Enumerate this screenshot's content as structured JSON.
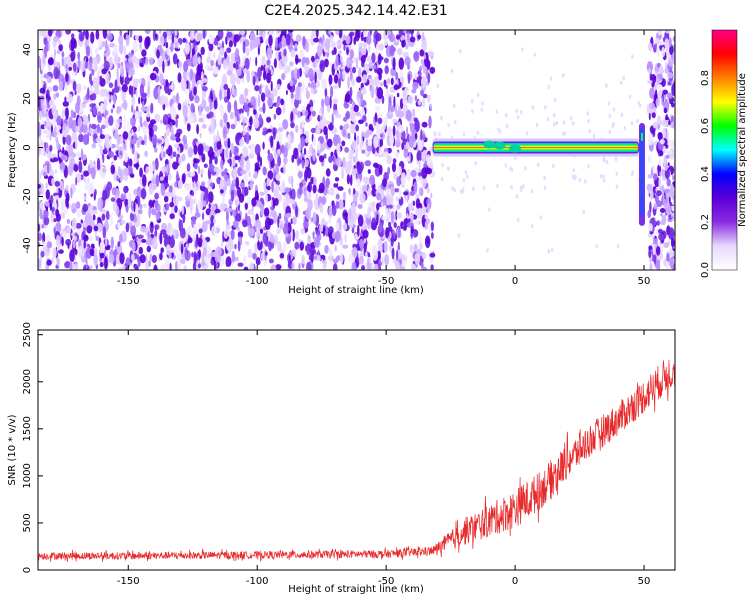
{
  "title": "C2E4.2025.342.14.42.E31",
  "chart_data": [
    {
      "type": "heatmap",
      "xlabel": "Height of straight line (km)",
      "ylabel": "Frequency (Hz)",
      "xlim": [
        -185,
        62
      ],
      "ylim": [
        -50,
        48
      ],
      "xticks": [
        -150,
        -100,
        -50,
        0,
        50
      ],
      "yticks": [
        -40,
        -20,
        0,
        20,
        40
      ],
      "noise_region_x": [
        -185,
        -32
      ],
      "noise_region_right_x": [
        50,
        62
      ],
      "signal_band": {
        "x": [
          -32,
          48
        ],
        "frequency": 0
      },
      "colorbar": {
        "label": "Normalized spectral amplitude",
        "range": [
          0,
          1
        ],
        "ticks": [
          0.0,
          0.2,
          0.4,
          0.6,
          0.8
        ],
        "colormap": [
          "#ffffff",
          "#e8d8ff",
          "#8a2be2",
          "#5a00d6",
          "#0000ff",
          "#00ffff",
          "#00ff00",
          "#ffff00",
          "#ff8000",
          "#ff0000",
          "#ff0088"
        ]
      }
    },
    {
      "type": "line",
      "xlabel": "Height of straight line (km)",
      "ylabel": "SNR (10 * v/v)",
      "xlim": [
        -185,
        62
      ],
      "ylim": [
        0,
        2550
      ],
      "xticks": [
        -150,
        -100,
        -50,
        0,
        50
      ],
      "yticks": [
        0,
        500,
        1000,
        1500,
        2000,
        2500
      ],
      "color": "#e8292b",
      "series": [
        {
          "x": [
            -185,
            -150,
            -100,
            -50,
            -32,
            -20,
            0,
            10,
            20,
            30,
            40,
            50,
            62
          ],
          "y": [
            150,
            150,
            160,
            170,
            200,
            400,
            650,
            850,
            1150,
            1400,
            1600,
            1850,
            2150
          ],
          "spread": [
            50,
            50,
            50,
            55,
            60,
            180,
            260,
            260,
            240,
            220,
            220,
            230,
            250
          ]
        }
      ]
    }
  ]
}
